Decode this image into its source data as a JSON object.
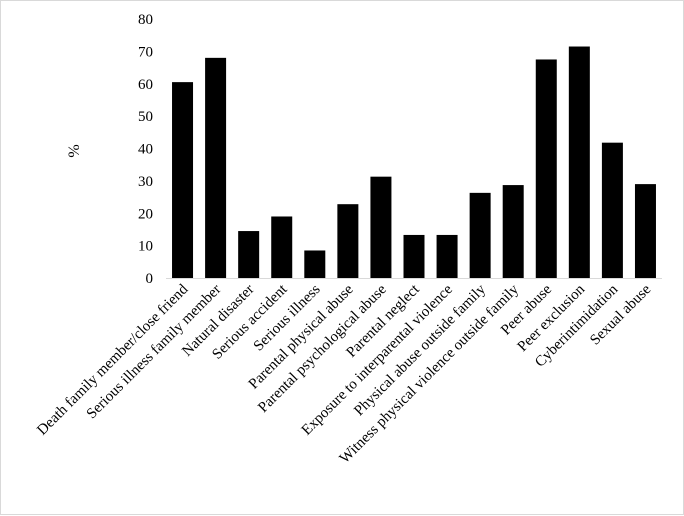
{
  "chart_data": {
    "type": "bar",
    "title": "",
    "xlabel": "",
    "ylabel": "%",
    "ylim": [
      0,
      80
    ],
    "yticks": [
      0,
      10,
      20,
      30,
      40,
      50,
      60,
      70,
      80
    ],
    "grid": false,
    "legend": "none",
    "bar_color": "#000000",
    "categories": [
      "Death family member/close friend",
      "Serious illness family member",
      "Natural disaster",
      "Serious accident",
      "Serious illness",
      "Parental physical abuse",
      "Parental psychological abuse",
      "Parental neglect",
      "Exposure to interparental violence",
      "Physical abuse outside family",
      "Witness physical violence outside family",
      "Peer abuse",
      "Peer exclusion",
      "Cyberintimidation",
      "Sexual abuse"
    ],
    "values": [
      60.5,
      68,
      14.5,
      19,
      8.5,
      22.8,
      31.3,
      13.3,
      13.3,
      26.3,
      28.7,
      67.5,
      71.5,
      41.8,
      29
    ]
  }
}
